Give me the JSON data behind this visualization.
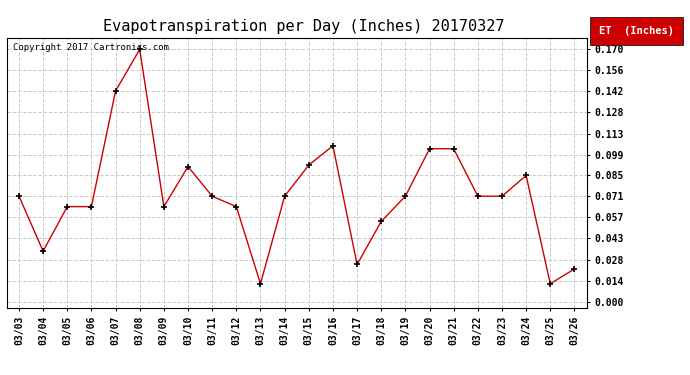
{
  "title": "Evapotranspiration per Day (Inches) 20170327",
  "copyright": "Copyright 2017 Cartronics.com",
  "legend_label": "ET  (Inches)",
  "dates": [
    "03/03",
    "03/04",
    "03/05",
    "03/06",
    "03/07",
    "03/08",
    "03/09",
    "03/10",
    "03/11",
    "03/12",
    "03/13",
    "03/14",
    "03/15",
    "03/16",
    "03/17",
    "03/18",
    "03/19",
    "03/20",
    "03/21",
    "03/22",
    "03/23",
    "03/24",
    "03/25",
    "03/26"
  ],
  "values": [
    0.071,
    0.034,
    0.064,
    0.064,
    0.142,
    0.17,
    0.064,
    0.091,
    0.071,
    0.064,
    0.012,
    0.071,
    0.092,
    0.105,
    0.025,
    0.054,
    0.071,
    0.103,
    0.103,
    0.071,
    0.071,
    0.085,
    0.012,
    0.022
  ],
  "line_color": "#cc0000",
  "marker": "+",
  "marker_color": "#000000",
  "marker_size": 5,
  "yticks": [
    0.0,
    0.014,
    0.028,
    0.043,
    0.057,
    0.071,
    0.085,
    0.099,
    0.113,
    0.128,
    0.142,
    0.156,
    0.17
  ],
  "ylim": [
    -0.004,
    0.178
  ],
  "grid_color": "#cccccc",
  "grid_style": "--",
  "bg_color": "#ffffff",
  "title_fontsize": 11,
  "copyright_fontsize": 6.5,
  "tick_fontsize": 7,
  "legend_fontsize": 7.5
}
